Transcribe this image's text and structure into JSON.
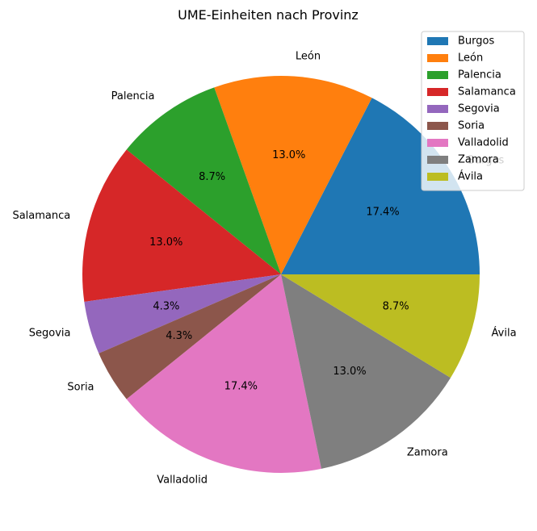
{
  "chart_data": {
    "type": "pie",
    "title": "UME-Einheiten nach Provinz",
    "categories": [
      "Burgos",
      "León",
      "Palencia",
      "Salamanca",
      "Segovia",
      "Soria",
      "Valladolid",
      "Zamora",
      "Ávila"
    ],
    "values": [
      17.4,
      13.0,
      8.7,
      13.0,
      4.3,
      4.3,
      17.4,
      13.0,
      8.7
    ],
    "percent_labels": [
      "17.4%",
      "13.0%",
      "8.7%",
      "13.0%",
      "4.3%",
      "4.3%",
      "17.4%",
      "13.0%",
      "8.7%"
    ],
    "colors": [
      "#1f77b4",
      "#ff7f0e",
      "#2ca02c",
      "#d62728",
      "#9467bd",
      "#8c564b",
      "#e377c2",
      "#7f7f7f",
      "#bcbd22"
    ],
    "legend": {
      "placement": "top-right",
      "entries": [
        "Burgos",
        "León",
        "Palencia",
        "Salamanca",
        "Segovia",
        "Soria",
        "Valladolid",
        "Zamora",
        "Ávila"
      ]
    },
    "start_angle_deg": 0,
    "direction": "counterclockwise"
  }
}
